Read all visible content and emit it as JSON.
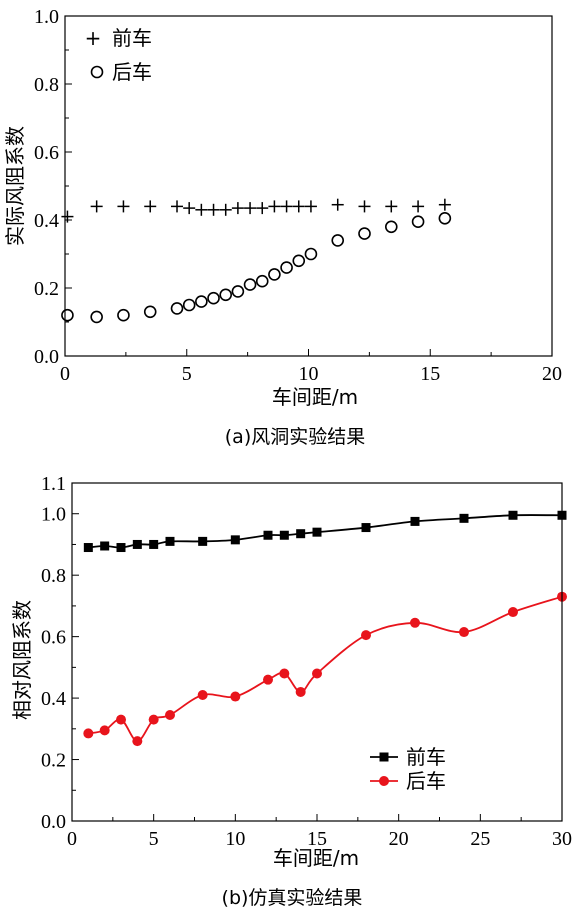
{
  "chart_data": [
    {
      "type": "scatter",
      "caption": "(a)风洞实验结果",
      "xlabel": "车间距/m",
      "ylabel": "实际风阻系数",
      "xlim": [
        0,
        20
      ],
      "ylim": [
        0.0,
        1.0
      ],
      "xticks": [
        "0",
        "5",
        "10",
        "15",
        "20"
      ],
      "yticks": [
        "0.0",
        "0.2",
        "0.4",
        "0.6",
        "0.8",
        "1.0"
      ],
      "grid": false,
      "legend_position": "top-left",
      "series": [
        {
          "name": "前车",
          "marker": "plus",
          "color": "#000000",
          "x": [
            0.1,
            1.3,
            2.4,
            3.5,
            4.6,
            5.1,
            5.6,
            6.1,
            6.6,
            7.1,
            7.6,
            8.1,
            8.6,
            9.1,
            9.6,
            10.1,
            11.2,
            12.3,
            13.4,
            14.5,
            15.6
          ],
          "y": [
            0.41,
            0.44,
            0.44,
            0.44,
            0.44,
            0.435,
            0.43,
            0.43,
            0.43,
            0.435,
            0.435,
            0.435,
            0.44,
            0.44,
            0.44,
            0.44,
            0.445,
            0.44,
            0.44,
            0.44,
            0.445
          ]
        },
        {
          "name": "后车",
          "marker": "circle",
          "color": "#000000",
          "x": [
            0.1,
            1.3,
            2.4,
            3.5,
            4.6,
            5.1,
            5.6,
            6.1,
            6.6,
            7.1,
            7.6,
            8.1,
            8.6,
            9.1,
            9.6,
            10.1,
            11.2,
            12.3,
            13.4,
            14.5,
            15.6
          ],
          "y": [
            0.12,
            0.115,
            0.12,
            0.13,
            0.14,
            0.15,
            0.16,
            0.17,
            0.18,
            0.19,
            0.21,
            0.22,
            0.24,
            0.26,
            0.28,
            0.3,
            0.34,
            0.36,
            0.38,
            0.395,
            0.405
          ]
        }
      ]
    },
    {
      "type": "line",
      "caption": "(b)仿真实验结果",
      "xlabel": "车间距/m",
      "ylabel": "相对风阻系数",
      "xlim": [
        0,
        30
      ],
      "ylim": [
        0.0,
        1.1
      ],
      "xticks": [
        "0",
        "5",
        "10",
        "15",
        "20",
        "25",
        "30"
      ],
      "yticks": [
        "0.0",
        "0.2",
        "0.4",
        "0.6",
        "0.8",
        "1.0",
        "1.1"
      ],
      "grid": false,
      "legend_position": "bottom-right",
      "series": [
        {
          "name": "前车",
          "marker": "square",
          "color": "#000000",
          "x": [
            1,
            2,
            3,
            4,
            5,
            6,
            8,
            10,
            12,
            13,
            14,
            15,
            18,
            21,
            24,
            27,
            30
          ],
          "y": [
            0.89,
            0.895,
            0.89,
            0.9,
            0.9,
            0.91,
            0.91,
            0.915,
            0.93,
            0.93,
            0.935,
            0.94,
            0.955,
            0.975,
            0.985,
            0.995,
            0.995
          ]
        },
        {
          "name": "后车",
          "marker": "circle-filled",
          "color": "#e8141c",
          "x": [
            1,
            2,
            3,
            4,
            5,
            6,
            8,
            10,
            12,
            13,
            14,
            15,
            18,
            21,
            24,
            27,
            30
          ],
          "y": [
            0.285,
            0.295,
            0.33,
            0.26,
            0.33,
            0.345,
            0.41,
            0.405,
            0.46,
            0.48,
            0.42,
            0.48,
            0.605,
            0.645,
            0.615,
            0.68,
            0.73
          ]
        }
      ]
    }
  ]
}
